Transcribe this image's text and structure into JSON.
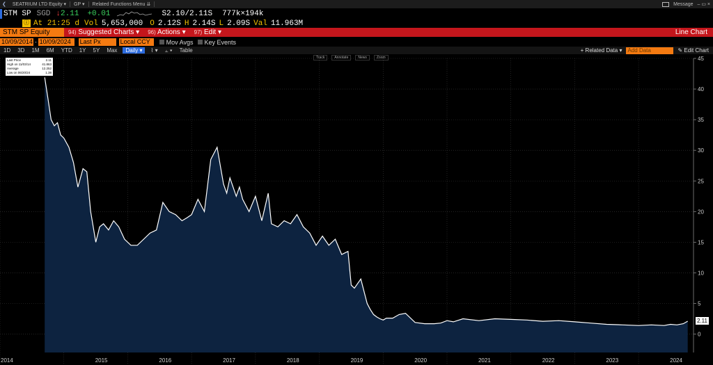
{
  "window": {
    "security": "SEATRIUM LTD Equity",
    "gp_label": "GP",
    "related_menu": "Related Functions Menu",
    "message": "Message",
    "help": "?"
  },
  "quote": {
    "ticker": "STM SP",
    "currency": "SGD",
    "arrow": "↓",
    "last": "2.11",
    "change": "+0.01",
    "bid_ask": "S2.10/2.11S",
    "size": "777k×194k"
  },
  "stats": {
    "stamp": "ⓘ",
    "at": "At 21:25 d",
    "vol_label": "Vol",
    "vol": "5,653,000",
    "open_label": "O",
    "open": "2.12S",
    "high_label": "H",
    "high": "2.14S",
    "low_label": "L",
    "low": "2.09S",
    "val_label": "Val",
    "val": "11.963M"
  },
  "function_bar": {
    "security": "STM SP Equity",
    "suggested": {
      "num": "94)",
      "label": "Suggested Charts"
    },
    "actions": {
      "num": "96)",
      "label": "Actions"
    },
    "edit": {
      "num": "97)",
      "label": "Edit"
    },
    "title": "Line Chart"
  },
  "inputs": {
    "start_date": "10/09/2014",
    "end_date": "10/09/2024",
    "field": "Last Px",
    "ccy": "Local CCY",
    "mov_avgs": "Mov Avgs",
    "key_events": "Key Events"
  },
  "ranges": {
    "items": [
      "1D",
      "3D",
      "1M",
      "6M",
      "YTD",
      "1Y",
      "5Y",
      "Max"
    ],
    "periodicity": "Daily",
    "table": "Table",
    "related_data": "+ Related Data",
    "add_data": "Add Data",
    "edit_chart": "Edit Chart"
  },
  "legend": {
    "rows": [
      {
        "label": "Last Price",
        "value": "2.11"
      },
      {
        "label": "High on 11/03/14",
        "value": "41.863"
      },
      {
        "label": "Average",
        "value": "12.252"
      },
      {
        "label": "Low on 06/20/24",
        "value": "1.38"
      }
    ]
  },
  "chart_tools": [
    "Track",
    "Annotate",
    "News",
    "Zoom"
  ],
  "last_value_label": "2.11",
  "colors": {
    "background": "#000000",
    "area_fill": "#0d2340",
    "line": "#ffffff",
    "accent_orange": "#f47a11",
    "accent_red": "#c4161c"
  },
  "chart_data": {
    "type": "area",
    "title": "",
    "xlabel": "",
    "ylabel": "",
    "ylim": [
      -3,
      45
    ],
    "yticks": [
      0,
      5,
      10,
      15,
      20,
      25,
      30,
      35,
      40,
      45
    ],
    "xticks": [
      "2014",
      "2015",
      "2016",
      "2017",
      "2018",
      "2019",
      "2020",
      "2021",
      "2022",
      "2023",
      "2024"
    ],
    "grid": true,
    "y_axis_side": "right",
    "series": [
      {
        "x": [
          2014.7,
          2014.75,
          2014.8,
          2014.85,
          2014.9,
          2014.95,
          2015.0,
          2015.08,
          2015.15,
          2015.22,
          2015.3,
          2015.36,
          2015.42,
          2015.5,
          2015.56,
          2015.62,
          2015.7,
          2015.78,
          2015.86,
          2015.95,
          2016.05,
          2016.15,
          2016.25,
          2016.35,
          2016.45,
          2016.55,
          2016.65,
          2016.75,
          2016.85,
          2016.93,
          2017.0,
          2017.1,
          2017.2,
          2017.3,
          2017.4,
          2017.5,
          2017.55,
          2017.6,
          2017.7,
          2017.75,
          2017.8,
          2017.9,
          2018.0,
          2018.1,
          2018.2,
          2018.25,
          2018.35,
          2018.45,
          2018.55,
          2018.65,
          2018.75,
          2018.85,
          2018.95,
          2019.05,
          2019.15,
          2019.25,
          2019.35,
          2019.45,
          2019.5,
          2019.55,
          2019.65,
          2019.75,
          2019.8,
          2019.85,
          2019.9,
          2019.95,
          2020.0,
          2020.05,
          2020.15,
          2020.25,
          2020.35,
          2020.5,
          2020.65,
          2020.8,
          2020.9,
          2021.0,
          2021.1,
          2021.25,
          2021.5,
          2021.75,
          2022.0,
          2022.25,
          2022.5,
          2022.75,
          2023.0,
          2023.25,
          2023.5,
          2023.75,
          2024.0,
          2024.2,
          2024.4,
          2024.5,
          2024.6,
          2024.7,
          2024.77
        ],
        "values": [
          41.9,
          38.5,
          35.0,
          34.0,
          34.5,
          32.5,
          32.0,
          30.5,
          28.0,
          24.0,
          27.0,
          26.5,
          20.0,
          15.0,
          17.5,
          18.0,
          17.0,
          18.5,
          17.5,
          15.5,
          14.5,
          14.5,
          15.5,
          16.5,
          17.0,
          21.5,
          20.0,
          19.5,
          18.5,
          19.0,
          19.5,
          22.0,
          20.0,
          28.5,
          30.5,
          24.5,
          23.0,
          25.5,
          22.5,
          24.0,
          22.0,
          20.0,
          22.5,
          18.5,
          23.0,
          18.0,
          17.5,
          18.5,
          18.0,
          19.5,
          17.5,
          16.5,
          14.5,
          16.0,
          14.5,
          15.5,
          13.0,
          13.5,
          8.0,
          7.5,
          9.0,
          5.0,
          4.0,
          3.2,
          2.8,
          2.5,
          2.3,
          2.6,
          2.6,
          3.2,
          3.4,
          1.9,
          1.7,
          1.7,
          1.8,
          2.2,
          2.0,
          2.5,
          2.2,
          2.5,
          2.4,
          2.3,
          2.1,
          2.2,
          2.0,
          1.8,
          1.6,
          1.5,
          1.4,
          1.5,
          1.4,
          1.6,
          1.5,
          1.7,
          2.11
        ]
      }
    ]
  }
}
